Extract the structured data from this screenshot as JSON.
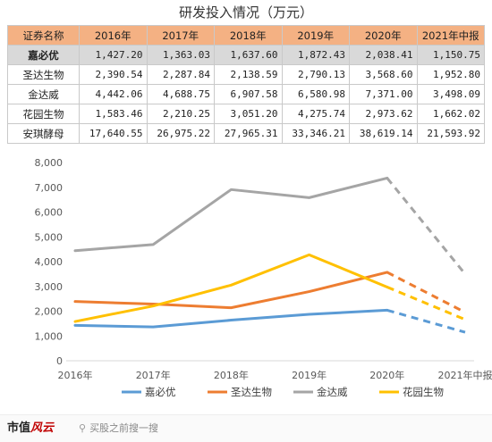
{
  "table_title": "研发投入情况（万元）",
  "table": {
    "header": [
      "证券名称",
      "2016年",
      "2017年",
      "2018年",
      "2019年",
      "2020年",
      "2021年中报"
    ],
    "rows": [
      {
        "name": "嘉必优",
        "values": [
          "1,427.20",
          "1,363.03",
          "1,637.60",
          "1,872.43",
          "2,038.41",
          "1,150.75"
        ],
        "highlight": true
      },
      {
        "name": "圣达生物",
        "values": [
          "2,390.54",
          "2,287.84",
          "2,138.59",
          "2,790.13",
          "3,568.60",
          "1,952.80"
        ],
        "highlight": false
      },
      {
        "name": "金达威",
        "values": [
          "4,442.06",
          "4,688.75",
          "6,907.58",
          "6,580.98",
          "7,371.00",
          "3,498.09"
        ],
        "highlight": false
      },
      {
        "name": "花园生物",
        "values": [
          "1,583.46",
          "2,210.25",
          "3,051.20",
          "4,275.74",
          "2,973.62",
          "1,662.02"
        ],
        "highlight": false
      },
      {
        "name": "安琪酵母",
        "values": [
          "17,640.55",
          "26,975.22",
          "27,965.31",
          "33,346.21",
          "38,619.14",
          "21,593.92"
        ],
        "highlight": false
      }
    ]
  },
  "chart_data": {
    "type": "line",
    "categories": [
      "2016年",
      "2017年",
      "2018年",
      "2019年",
      "2020年",
      "2021年中报"
    ],
    "ylim": [
      0,
      8000
    ],
    "yticks": [
      "0",
      "1,000",
      "2,000",
      "3,000",
      "4,000",
      "5,000",
      "6,000",
      "7,000",
      "8,000"
    ],
    "dashed_last_segment": true,
    "grid": false,
    "legend_position": "bottom",
    "series": [
      {
        "name": "嘉必优",
        "color": "#5b9bd5",
        "values": [
          1427.2,
          1363.03,
          1637.6,
          1872.43,
          2038.41,
          1150.75
        ]
      },
      {
        "name": "圣达生物",
        "color": "#ed7d31",
        "values": [
          2390.54,
          2287.84,
          2138.59,
          2790.13,
          3568.6,
          1952.8
        ]
      },
      {
        "name": "金达威",
        "color": "#a5a5a5",
        "values": [
          4442.06,
          4688.75,
          6907.58,
          6580.98,
          7371.0,
          3498.09
        ]
      },
      {
        "name": "花园生物",
        "color": "#ffc000",
        "values": [
          1583.46,
          2210.25,
          3051.2,
          4275.74,
          2973.62,
          1662.02
        ]
      }
    ]
  },
  "footer": {
    "brand_main": "市值",
    "brand_accent": "风云",
    "search_hint": "买股之前搜一搜"
  }
}
